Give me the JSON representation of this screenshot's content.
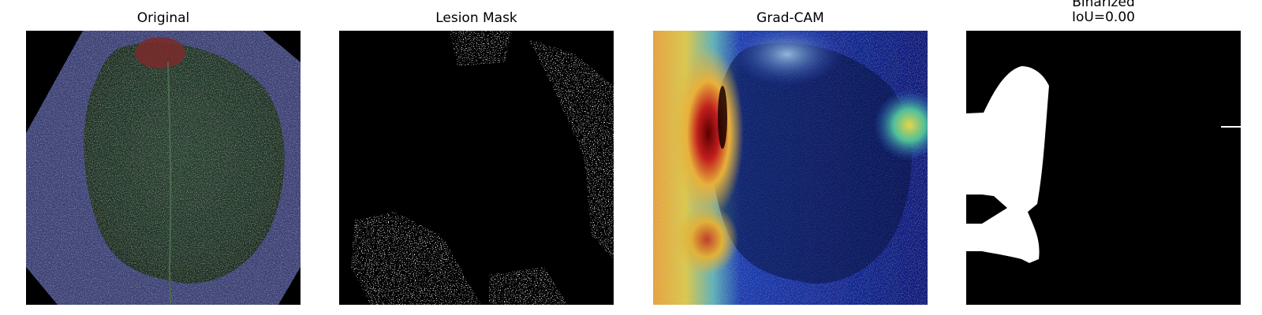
{
  "panels": [
    {
      "id": "original",
      "title": "Original",
      "subtitle": ""
    },
    {
      "id": "lesion_mask",
      "title": "Lesion Mask",
      "subtitle": ""
    },
    {
      "id": "grad_cam",
      "title": "Grad-CAM",
      "subtitle": ""
    },
    {
      "id": "binarized",
      "title": "Binarized",
      "subtitle": "IoU=0.00"
    }
  ],
  "colors": {
    "background": "#ffffff",
    "image_black": "#000000",
    "leaf_green": "#1f3a22",
    "sheet_blue": "#3b3f76",
    "lesion_red": "#7a2a2a",
    "mask_white": "#ffffff"
  }
}
